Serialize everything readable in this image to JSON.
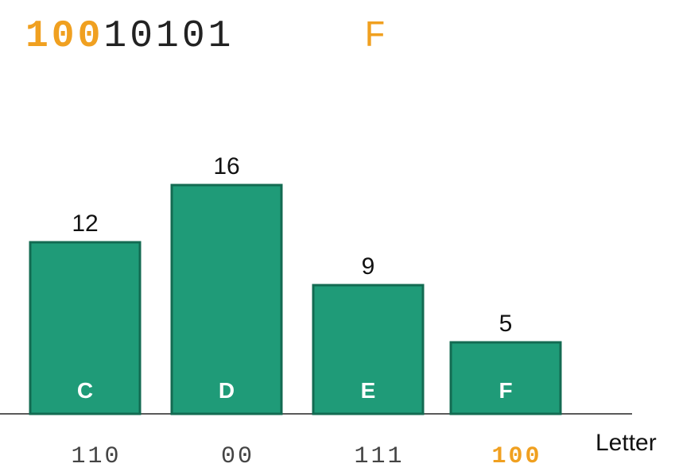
{
  "header": {
    "bits_matched": "100",
    "bits_rest": "10101",
    "decoded_letter": "F"
  },
  "colors": {
    "highlight": "#F0A020",
    "bar_fill": "#1F9B78",
    "bar_stroke": "#136B52",
    "text": "#222222",
    "code_text": "#444444"
  },
  "chart_data": {
    "type": "bar",
    "categories": [
      "C",
      "D",
      "E",
      "F"
    ],
    "values": [
      12,
      16,
      9,
      5
    ],
    "codes": [
      "110",
      "00",
      "111",
      "100"
    ],
    "highlighted_index": 3,
    "xlabel": "Letter",
    "ylabel": "",
    "title": "",
    "ylim": [
      0,
      16
    ]
  }
}
